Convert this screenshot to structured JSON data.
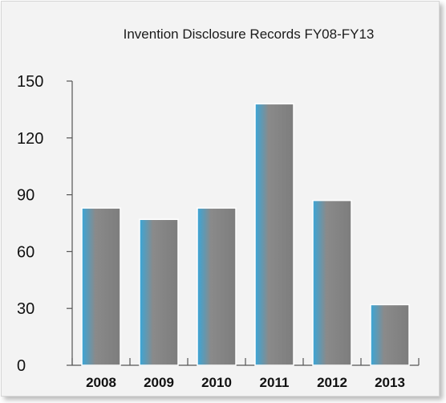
{
  "chart_data": {
    "type": "bar",
    "title": "Invention Disclosure Records FY08-FY13",
    "xlabel": "",
    "ylabel": "",
    "categories": [
      "2008",
      "2009",
      "2010",
      "2011",
      "2012",
      "2013"
    ],
    "values": [
      83,
      77,
      83,
      138,
      87,
      32
    ],
    "ylim": [
      0,
      150
    ],
    "yticks": [
      0,
      30,
      60,
      90,
      120,
      150
    ],
    "grid": false,
    "colors": {
      "bar_edge": "#3aa6d8",
      "bar_body": "#7d7d7d",
      "background": "#f3f3f3",
      "axis": "#555555"
    }
  }
}
